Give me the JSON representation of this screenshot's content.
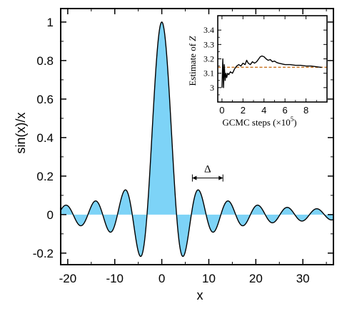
{
  "chart_data": [
    {
      "type": "area",
      "function": "sin(x)/x",
      "xlabel": "x",
      "ylabel": "sin(x)/x",
      "xlim": [
        -21.5,
        36.5
      ],
      "ylim": [
        -0.26,
        1.07
      ],
      "x_ticks": [
        -20,
        -10,
        0,
        10,
        20,
        30
      ],
      "x_tick_labels": [
        "-20",
        "-10",
        "0",
        "10",
        "20",
        "30"
      ],
      "y_ticks": [
        -0.2,
        0,
        0.2,
        0.4,
        0.6,
        0.8,
        1
      ],
      "y_tick_labels": [
        "-0.2",
        "0",
        "0.2",
        "0.4",
        "0.6",
        "0.8",
        "1"
      ],
      "annotation": {
        "label": "Δ",
        "x_start": 6.5,
        "x_end": 13.0,
        "y": 0.19
      },
      "colors": {
        "fill": "#7dd3f7",
        "line": "#000000"
      },
      "grid": false
    },
    {
      "type": "line",
      "xlabel": "GCMC steps (×10",
      "xlabel_exponent": "5",
      "xlabel_suffix": ")",
      "ylabel": "Estimate of ",
      "ylabel_var": "Z",
      "xlim": [
        -0.4,
        10
      ],
      "ylim": [
        2.9,
        3.5
      ],
      "x_ticks": [
        0,
        2,
        4,
        6,
        8
      ],
      "x_tick_labels": [
        "0",
        "2",
        "4",
        "6",
        "8"
      ],
      "y_ticks": [
        3,
        3.1,
        3.2,
        3.3,
        3.4
      ],
      "y_tick_labels": [
        "3",
        "3.1",
        "3.2",
        "3.3",
        "3.4"
      ],
      "reference_line": 3.14159,
      "series_points": [
        [
          0.0,
          3.0
        ],
        [
          0.08,
          3.2
        ],
        [
          0.15,
          3.0
        ],
        [
          0.22,
          3.16
        ],
        [
          0.3,
          3.05
        ],
        [
          0.38,
          3.1
        ],
        [
          0.45,
          3.07
        ],
        [
          0.55,
          3.1
        ],
        [
          0.65,
          3.09
        ],
        [
          0.8,
          3.11
        ],
        [
          1.0,
          3.1
        ],
        [
          1.2,
          3.13
        ],
        [
          1.4,
          3.15
        ],
        [
          1.6,
          3.16
        ],
        [
          1.8,
          3.15
        ],
        [
          2.0,
          3.17
        ],
        [
          2.2,
          3.16
        ],
        [
          2.35,
          3.19
        ],
        [
          2.5,
          3.17
        ],
        [
          2.7,
          3.16
        ],
        [
          2.9,
          3.18
        ],
        [
          3.1,
          3.17
        ],
        [
          3.3,
          3.18
        ],
        [
          3.5,
          3.2
        ],
        [
          3.65,
          3.215
        ],
        [
          3.8,
          3.22
        ],
        [
          4.0,
          3.215
        ],
        [
          4.2,
          3.2
        ],
        [
          4.4,
          3.19
        ],
        [
          4.6,
          3.195
        ],
        [
          4.8,
          3.18
        ],
        [
          5.0,
          3.185
        ],
        [
          5.2,
          3.175
        ],
        [
          5.4,
          3.17
        ],
        [
          5.7,
          3.165
        ],
        [
          6.0,
          3.16
        ],
        [
          6.5,
          3.16
        ],
        [
          7.0,
          3.155
        ],
        [
          7.5,
          3.155
        ],
        [
          8.0,
          3.15
        ],
        [
          8.5,
          3.15
        ],
        [
          9.0,
          3.145
        ],
        [
          9.5,
          3.14
        ]
      ],
      "colors": {
        "line": "#000000",
        "reference": "#c8711e"
      },
      "grid": false
    }
  ]
}
